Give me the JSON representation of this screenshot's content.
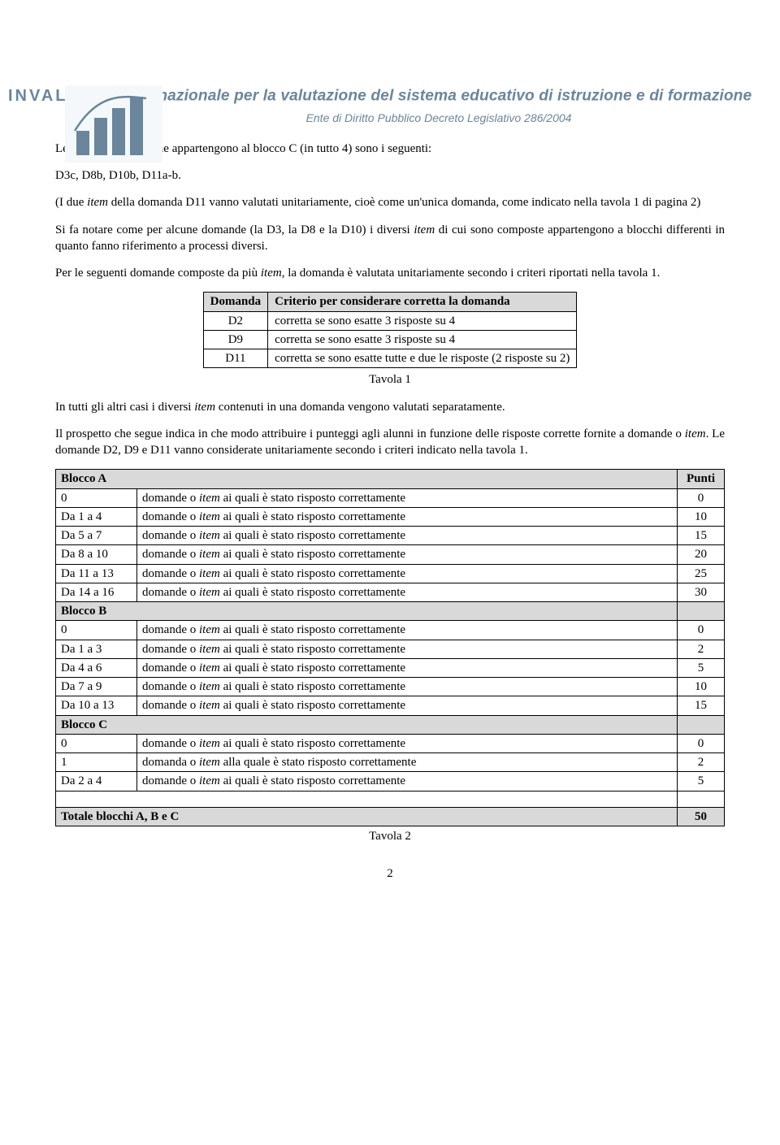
{
  "header": {
    "logo_text": "INVALSI",
    "title": "Istituto nazionale per la valutazione del sistema educativo di istruzione e di formazione",
    "subtitle": "Ente di Diritto Pubblico Decreto Legislativo 286/2004",
    "chart_colors": {
      "bar_fill": "#6b859b",
      "bg": "#f5f8fa",
      "stroke": "#6b859b"
    }
  },
  "body": {
    "p1a": "Le domande o ",
    "p1b": "item",
    "p1c": " che appartengono al blocco C (in tutto 4) sono i seguenti:",
    "p2": "D3c, D8b, D10b, D11a-b.",
    "p3a": "(I due ",
    "p3b": "item",
    "p3c": " della domanda D11 vanno valutati unitariamente, cioè come un'unica domanda, come indicato nella tavola 1 di pagina 2)",
    "p4a": "Si fa notare come per alcune domande (la D3, la D8 e la D10) i diversi ",
    "p4b": "item",
    "p4c": " di cui sono composte appartengono a blocchi differenti in quanto fanno riferimento a processi diversi.",
    "p5a": "Per le seguenti domande composte da più ",
    "p5b": "item",
    "p5c": ", la domanda è valutata unitariamente secondo i criteri riportati nella tavola 1."
  },
  "table1": {
    "headers": [
      "Domanda",
      "Criterio per considerare corretta la domanda"
    ],
    "rows": [
      [
        "D2",
        "corretta se sono esatte 3 risposte su 4"
      ],
      [
        "D9",
        "corretta se sono esatte 3 risposte su 4"
      ],
      [
        "D11",
        "corretta se sono esatte tutte e due le risposte (2 risposte su 2)"
      ]
    ],
    "caption": "Tavola 1"
  },
  "mid": {
    "p6a": "In tutti gli altri casi i diversi ",
    "p6b": "item",
    "p6c": " contenuti in una domanda vengono valutati separatamente.",
    "p7a": "Il prospetto che segue indica in che modo attribuire i punteggi agli alunni in funzione delle risposte corrette fornite a domande o ",
    "p7b": "item",
    "p7c": ". Le domande D2, D9 e D11 vanno considerate unitariamente secondo i criteri indicato nella tavola 1."
  },
  "table2": {
    "phrase_plural": " ai quali è stato risposto correttamente",
    "phrase_singular": " alla quale è stato risposto correttamente",
    "word_plural": "domande o ",
    "word_singular": "domanda o ",
    "item": "item",
    "blocks": [
      {
        "title": "Blocco A",
        "right": "Punti",
        "rows": [
          {
            "c": "0",
            "n": "plural",
            "p": "0"
          },
          {
            "c": "Da 1 a 4",
            "n": "plural",
            "p": "10"
          },
          {
            "c": "Da 5 a 7",
            "n": "plural",
            "p": "15"
          },
          {
            "c": "Da 8 a 10",
            "n": "plural",
            "p": "20"
          },
          {
            "c": "Da 11 a 13",
            "n": "plural",
            "p": "25"
          },
          {
            "c": "Da 14 a 16",
            "n": "plural",
            "p": "30"
          }
        ]
      },
      {
        "title": "Blocco B",
        "right": "",
        "rows": [
          {
            "c": "0",
            "n": "plural",
            "p": "0"
          },
          {
            "c": "Da 1 a 3",
            "n": "plural",
            "p": "2"
          },
          {
            "c": "Da 4 a 6",
            "n": "plural",
            "p": "5"
          },
          {
            "c": "Da 7 a 9",
            "n": "plural",
            "p": "10"
          },
          {
            "c": "Da 10 a 13",
            "n": "plural",
            "p": "15"
          }
        ]
      },
      {
        "title": "Blocco C",
        "right": "",
        "rows": [
          {
            "c": "0",
            "n": "plural",
            "p": "0"
          },
          {
            "c": "1",
            "n": "singular",
            "p": "2"
          },
          {
            "c": "Da 2 a 4",
            "n": "plural",
            "p": "5"
          }
        ]
      }
    ],
    "total": {
      "label": "Totale blocchi A, B e C",
      "value": "50"
    },
    "caption": "Tavola 2"
  },
  "page_number": "2"
}
